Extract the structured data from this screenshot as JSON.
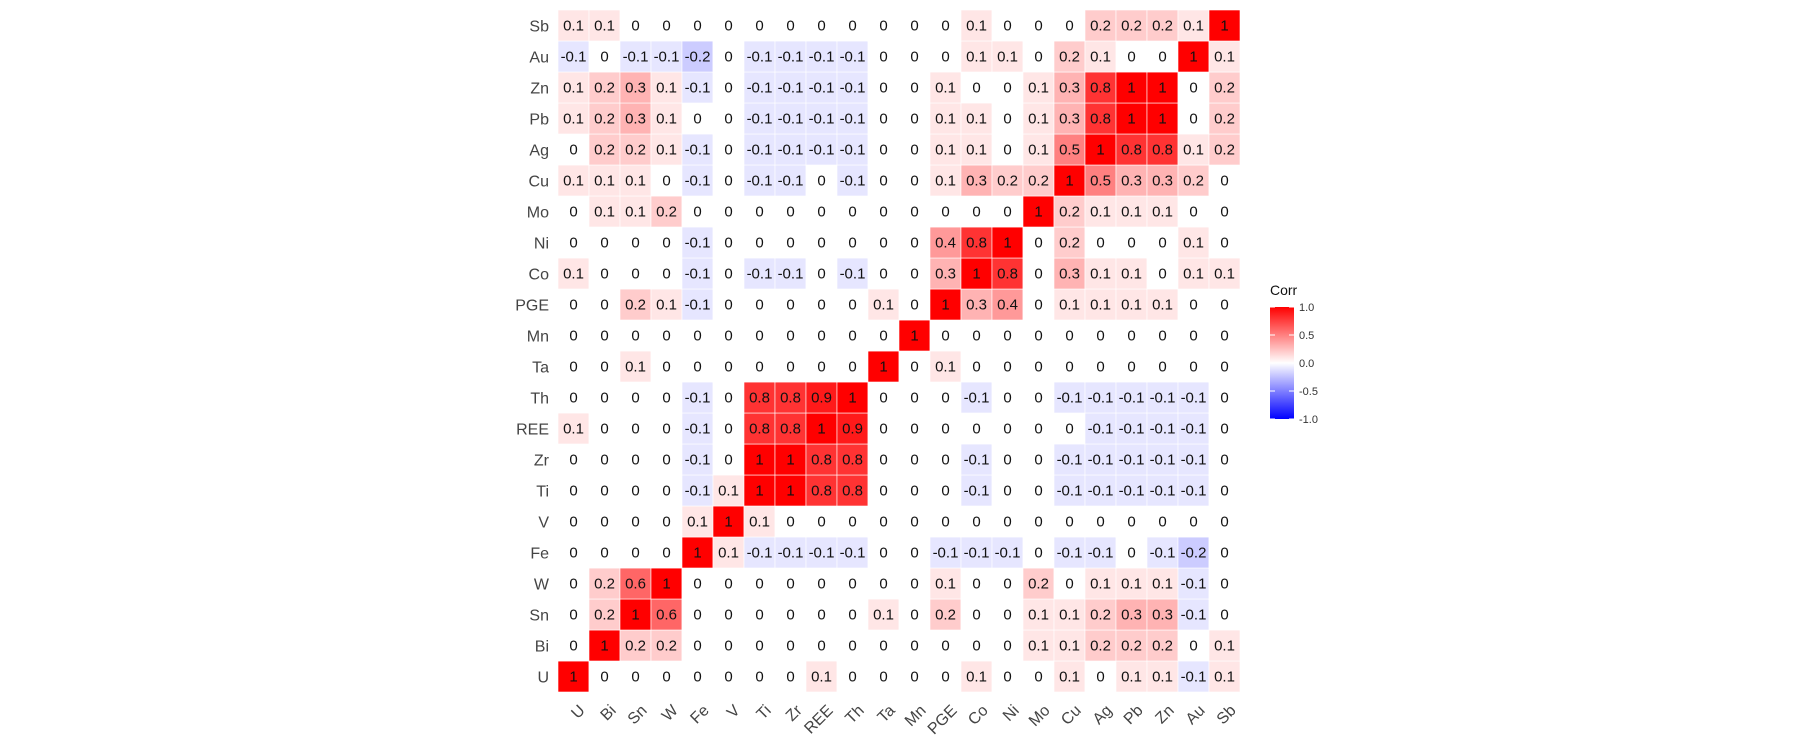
{
  "chart_data": {
    "type": "heatmap",
    "title": "",
    "xlabel": "",
    "ylabel": "",
    "variables": [
      "U",
      "Bi",
      "Sn",
      "W",
      "Fe",
      "V",
      "Ti",
      "Zr",
      "REE",
      "Th",
      "Ta",
      "Mn",
      "PGE",
      "Co",
      "Ni",
      "Mo",
      "Cu",
      "Ag",
      "Pb",
      "Zn",
      "Au",
      "Sb"
    ],
    "matrix": [
      [
        1,
        0,
        0,
        0,
        0,
        0,
        0,
        0,
        0.1,
        0,
        0,
        0,
        0,
        0.1,
        0,
        0,
        0.1,
        0,
        0.1,
        0.1,
        -0.1,
        0.1
      ],
      [
        0,
        1,
        0.2,
        0.2,
        0,
        0,
        0,
        0,
        0,
        0,
        0,
        0,
        0,
        0,
        0,
        0.1,
        0.1,
        0.2,
        0.2,
        0.2,
        0,
        0.1
      ],
      [
        0,
        0.2,
        1,
        0.6,
        0,
        0,
        0,
        0,
        0,
        0,
        0.1,
        0,
        0.2,
        0,
        0,
        0.1,
        0.1,
        0.2,
        0.3,
        0.3,
        -0.1,
        0
      ],
      [
        0,
        0.2,
        0.6,
        1,
        0,
        0,
        0,
        0,
        0,
        0,
        0,
        0,
        0.1,
        0,
        0,
        0.2,
        0,
        0.1,
        0.1,
        0.1,
        -0.1,
        0
      ],
      [
        0,
        0,
        0,
        0,
        1,
        0.1,
        -0.1,
        -0.1,
        -0.1,
        -0.1,
        0,
        0,
        -0.1,
        -0.1,
        -0.1,
        0,
        -0.1,
        -0.1,
        0,
        -0.1,
        -0.2,
        0
      ],
      [
        0,
        0,
        0,
        0,
        0.1,
        1,
        0.1,
        0,
        0,
        0,
        0,
        0,
        0,
        0,
        0,
        0,
        0,
        0,
        0,
        0,
        0,
        0
      ],
      [
        0,
        0,
        0,
        0,
        -0.1,
        0.1,
        1,
        1,
        0.8,
        0.8,
        0,
        0,
        0,
        -0.1,
        0,
        0,
        -0.1,
        -0.1,
        -0.1,
        -0.1,
        -0.1,
        0
      ],
      [
        0,
        0,
        0,
        0,
        -0.1,
        0,
        1,
        1,
        0.8,
        0.8,
        0,
        0,
        0,
        -0.1,
        0,
        0,
        -0.1,
        -0.1,
        -0.1,
        -0.1,
        -0.1,
        0
      ],
      [
        0.1,
        0,
        0,
        0,
        -0.1,
        0,
        0.8,
        0.8,
        1,
        0.9,
        0,
        0,
        0,
        0,
        0,
        0,
        0,
        -0.1,
        -0.1,
        -0.1,
        -0.1,
        0
      ],
      [
        0,
        0,
        0,
        0,
        -0.1,
        0,
        0.8,
        0.8,
        0.9,
        1,
        0,
        0,
        0,
        -0.1,
        0,
        0,
        -0.1,
        -0.1,
        -0.1,
        -0.1,
        -0.1,
        0
      ],
      [
        0,
        0,
        0.1,
        0,
        0,
        0,
        0,
        0,
        0,
        0,
        1,
        0,
        0.1,
        0,
        0,
        0,
        0,
        0,
        0,
        0,
        0,
        0
      ],
      [
        0,
        0,
        0,
        0,
        0,
        0,
        0,
        0,
        0,
        0,
        0,
        1,
        0,
        0,
        0,
        0,
        0,
        0,
        0,
        0,
        0,
        0
      ],
      [
        0,
        0,
        0.2,
        0.1,
        -0.1,
        0,
        0,
        0,
        0,
        0,
        0.1,
        0,
        1,
        0.3,
        0.4,
        0,
        0.1,
        0.1,
        0.1,
        0.1,
        0,
        0
      ],
      [
        0.1,
        0,
        0,
        0,
        -0.1,
        0,
        -0.1,
        -0.1,
        0,
        -0.1,
        0,
        0,
        0.3,
        1,
        0.8,
        0,
        0.3,
        0.1,
        0.1,
        0,
        0.1,
        0.1
      ],
      [
        0,
        0,
        0,
        0,
        -0.1,
        0,
        0,
        0,
        0,
        0,
        0,
        0,
        0.4,
        0.8,
        1,
        0,
        0.2,
        0,
        0,
        0,
        0.1,
        0
      ],
      [
        0,
        0.1,
        0.1,
        0.2,
        0,
        0,
        0,
        0,
        0,
        0,
        0,
        0,
        0,
        0,
        0,
        1,
        0.2,
        0.1,
        0.1,
        0.1,
        0,
        0
      ],
      [
        0.1,
        0.1,
        0.1,
        0,
        -0.1,
        0,
        -0.1,
        -0.1,
        0,
        -0.1,
        0,
        0,
        0.1,
        0.3,
        0.2,
        0.2,
        1,
        0.5,
        0.3,
        0.3,
        0.2,
        0
      ],
      [
        0,
        0.2,
        0.2,
        0.1,
        -0.1,
        0,
        -0.1,
        -0.1,
        -0.1,
        -0.1,
        0,
        0,
        0.1,
        0.1,
        0,
        0.1,
        0.5,
        1,
        0.8,
        0.8,
        0.1,
        0.2
      ],
      [
        0.1,
        0.2,
        0.3,
        0.1,
        0,
        0,
        -0.1,
        -0.1,
        -0.1,
        -0.1,
        0,
        0,
        0.1,
        0.1,
        0,
        0.1,
        0.3,
        0.8,
        1,
        1,
        0,
        0.2
      ],
      [
        0.1,
        0.2,
        0.3,
        0.1,
        -0.1,
        0,
        -0.1,
        -0.1,
        -0.1,
        -0.1,
        0,
        0,
        0.1,
        0,
        0,
        0.1,
        0.3,
        0.8,
        1,
        1,
        0,
        0.2
      ],
      [
        -0.1,
        0,
        -0.1,
        -0.1,
        -0.2,
        0,
        -0.1,
        -0.1,
        -0.1,
        -0.1,
        0,
        0,
        0,
        0.1,
        0.1,
        0,
        0.2,
        0.1,
        0,
        0,
        1,
        0.1
      ],
      [
        0.1,
        0.1,
        0,
        0,
        0,
        0,
        0,
        0,
        0,
        0,
        0,
        0,
        0,
        0.1,
        0,
        0,
        0,
        0.2,
        0.2,
        0.2,
        0.1,
        1
      ]
    ],
    "legend": {
      "title": "Corr",
      "position": "right",
      "ticks": [
        1.0,
        0.5,
        0.0,
        -0.5,
        -1.0
      ],
      "tick_labels": [
        "1.0",
        "0.5",
        "0.0",
        "-0.5",
        "-1.0"
      ],
      "range": [
        -1,
        1
      ]
    },
    "colors": {
      "high": "#ff0000",
      "mid": "#ffffff",
      "low": "#0000ff",
      "cell_border": "#ffffff"
    },
    "grid": false
  }
}
